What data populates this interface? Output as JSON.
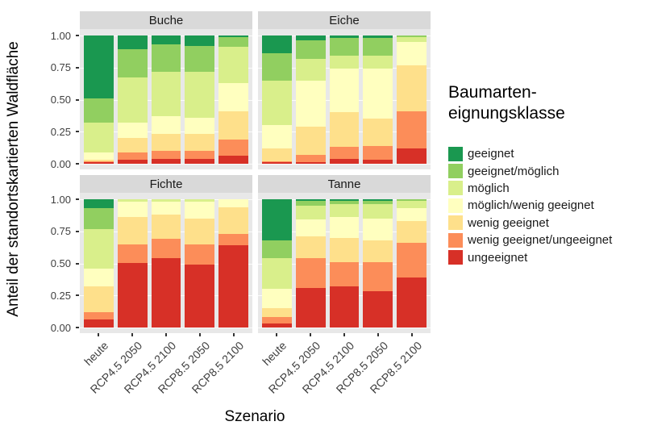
{
  "chart_data": {
    "type": "bar",
    "stacked": true,
    "normalized": true,
    "facets": [
      "Buche",
      "Eiche",
      "Fichte",
      "Tanne"
    ],
    "categories": [
      "heute",
      "RCP4.5 2050",
      "RCP4.5 2100",
      "RCP8.5 2050",
      "RCP8.5 2100"
    ],
    "xlabel": "Szenario",
    "ylabel": "Anteil der standortskartierten Waldfläche",
    "ylim": [
      0,
      1
    ],
    "yticks": [
      "1.00",
      "0.75",
      "0.50",
      "0.25",
      "0.00"
    ],
    "grid": "major-horizontal",
    "legend_position": "right",
    "legend_title": "Baumarten-eignungsklasse",
    "legend_title_lines": [
      "Baumarten-",
      "eignungsklasse"
    ],
    "classes": [
      {
        "label": "geeignet",
        "color": "#1a9850"
      },
      {
        "label": "geeignet/möglich",
        "color": "#91cf60"
      },
      {
        "label": "möglich",
        "color": "#d9ef8b"
      },
      {
        "label": "möglich/wenig geeignet",
        "color": "#ffffbf"
      },
      {
        "label": "wenig geeignet",
        "color": "#fee08b"
      },
      {
        "label": "wenig geeignet/ungeeignet",
        "color": "#fc8d59"
      },
      {
        "label": "ungeeignet",
        "color": "#d73027"
      }
    ],
    "class_order": "top of bar to bottom of bar",
    "values": {
      "Buche": [
        [
          0.49,
          0.19,
          0.23,
          0.06,
          0.01,
          0.01,
          0.01
        ],
        [
          0.11,
          0.22,
          0.35,
          0.12,
          0.11,
          0.06,
          0.03
        ],
        [
          0.07,
          0.21,
          0.35,
          0.14,
          0.13,
          0.06,
          0.04
        ],
        [
          0.08,
          0.2,
          0.36,
          0.13,
          0.13,
          0.06,
          0.04
        ],
        [
          0.01,
          0.08,
          0.28,
          0.22,
          0.22,
          0.13,
          0.06
        ]
      ],
      "Eiche": [
        [
          0.14,
          0.21,
          0.35,
          0.18,
          0.1,
          0.01,
          0.01
        ],
        [
          0.04,
          0.14,
          0.17,
          0.36,
          0.22,
          0.06,
          0.01
        ],
        [
          0.02,
          0.14,
          0.1,
          0.34,
          0.27,
          0.09,
          0.04
        ],
        [
          0.02,
          0.14,
          0.1,
          0.39,
          0.21,
          0.11,
          0.03
        ],
        [
          0.0,
          0.01,
          0.04,
          0.18,
          0.36,
          0.29,
          0.12
        ]
      ],
      "Fichte": [
        [
          0.07,
          0.16,
          0.31,
          0.14,
          0.2,
          0.06,
          0.06
        ],
        [
          0.0,
          0.0,
          0.02,
          0.12,
          0.21,
          0.15,
          0.5
        ],
        [
          0.0,
          0.0,
          0.02,
          0.1,
          0.19,
          0.15,
          0.54
        ],
        [
          0.0,
          0.0,
          0.02,
          0.13,
          0.2,
          0.16,
          0.49
        ],
        [
          0.0,
          0.0,
          0.0,
          0.06,
          0.21,
          0.09,
          0.64
        ]
      ],
      "Tanne": [
        [
          0.32,
          0.14,
          0.24,
          0.15,
          0.07,
          0.05,
          0.03
        ],
        [
          0.01,
          0.04,
          0.11,
          0.13,
          0.17,
          0.23,
          0.31
        ],
        [
          0.01,
          0.03,
          0.1,
          0.16,
          0.19,
          0.19,
          0.32
        ],
        [
          0.01,
          0.03,
          0.11,
          0.17,
          0.17,
          0.23,
          0.28
        ],
        [
          0.0,
          0.01,
          0.06,
          0.1,
          0.17,
          0.27,
          0.39
        ]
      ]
    }
  },
  "style": {
    "panel_background": "#e8e8e8",
    "strip_background": "#d9d9d9",
    "page_background": "#ffffff"
  }
}
